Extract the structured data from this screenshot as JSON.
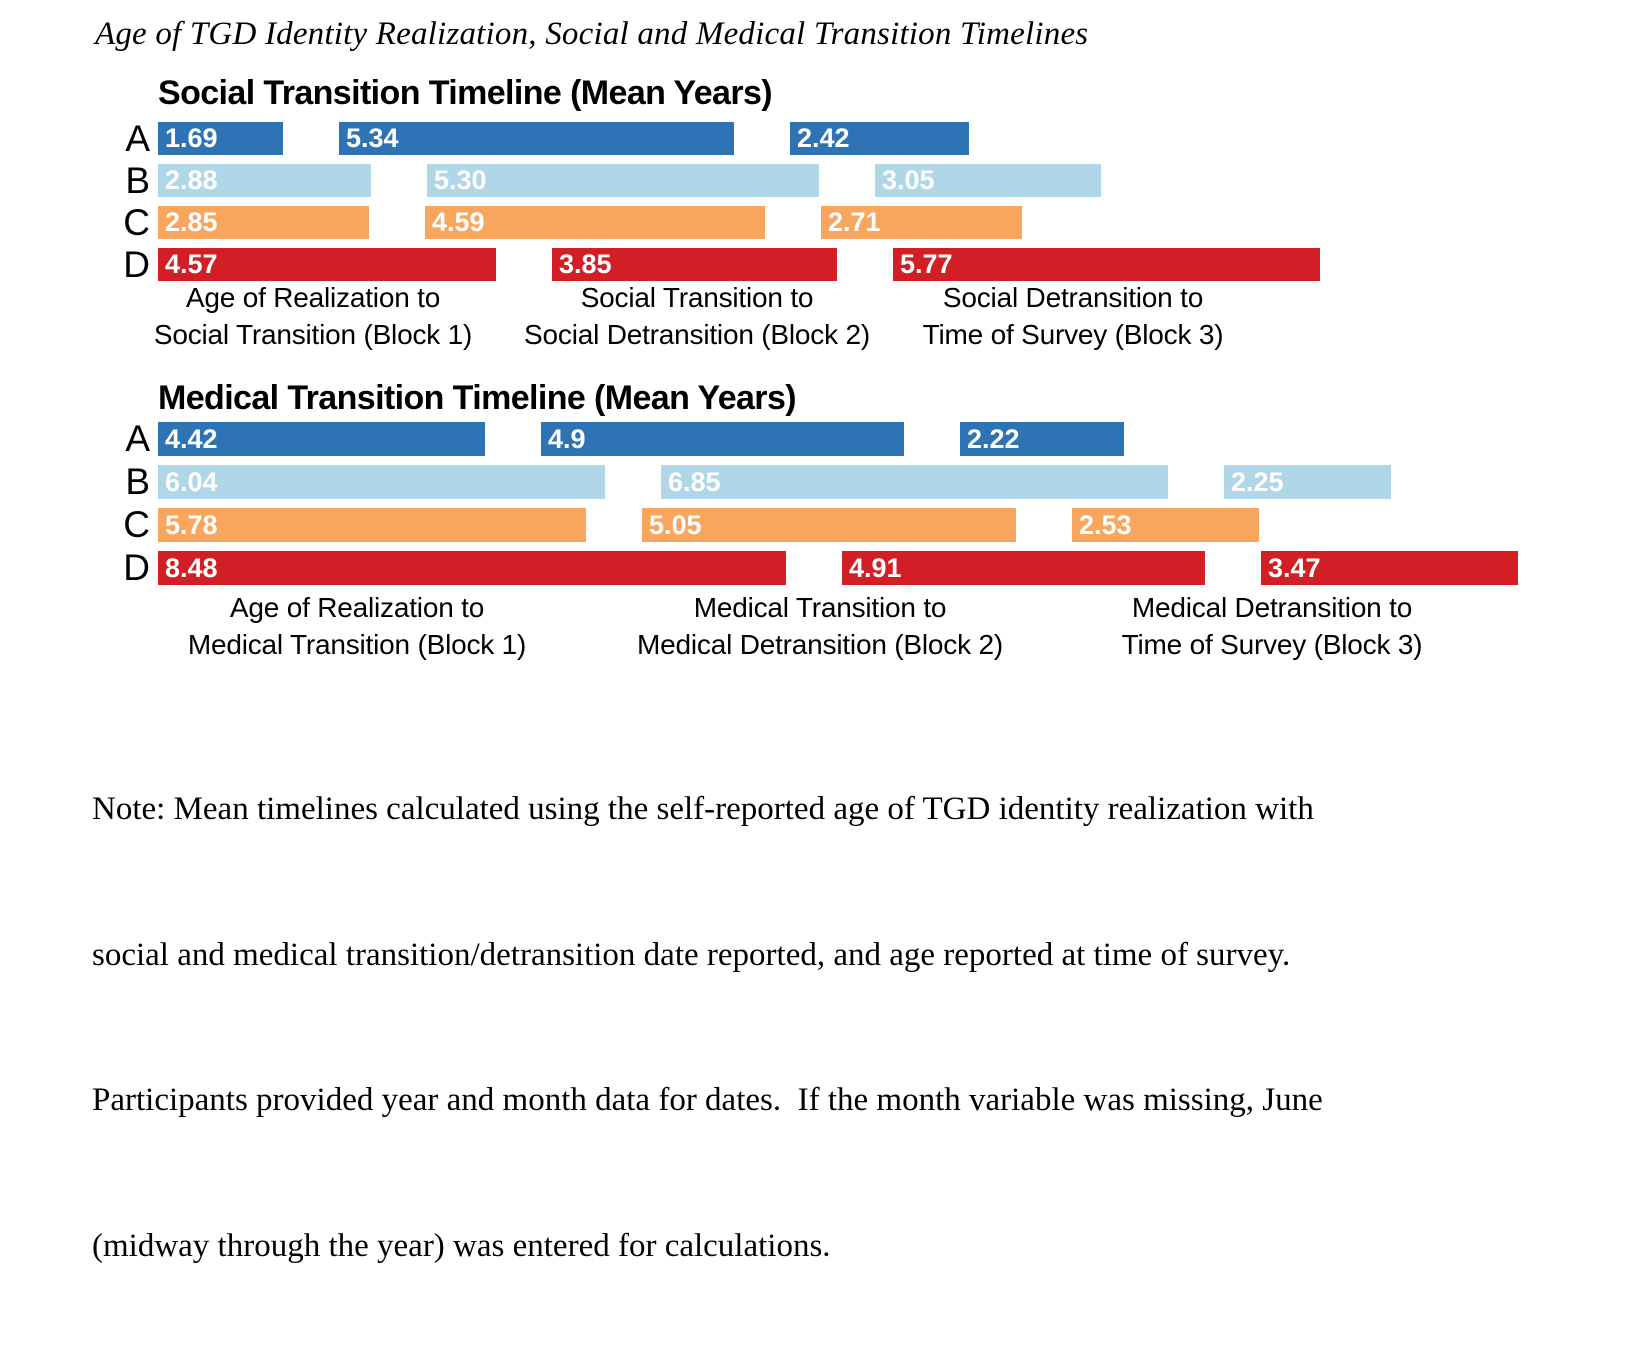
{
  "title": "Age of TGD Identity Realization, Social and Medical Transition Timelines",
  "colors": {
    "series_A": "#2E74B4",
    "series_B": "#AFD7E8",
    "series_C": "#F8A55D",
    "series_D": "#D21F26",
    "bar_value_text": "#FFFFFF",
    "text": "#000000",
    "background": "#FFFFFF"
  },
  "chart_data": [
    {
      "type": "bar",
      "subtype": "segmented-horizontal-timeline",
      "title": "Social Transition Timeline (Mean Years)",
      "unit": "mean years",
      "legend": "none",
      "grid": "off",
      "categories": [
        "Age of Realization to Social Transition (Block 1)",
        "Social Transition to Social Detransition (Block 2)",
        "Social Detransition to Time of Survey (Block 3)"
      ],
      "categories_2line": [
        [
          "Age of Realization to",
          "Social Transition (Block 1)"
        ],
        [
          "Social Transition to",
          "Social Detransition (Block 2)"
        ],
        [
          "Social Detransition to",
          "Time of Survey (Block 3)"
        ]
      ],
      "series": [
        {
          "name": "A",
          "color": "#2E74B4",
          "values": [
            1.69,
            5.34,
            2.42
          ],
          "labels": [
            "1.69",
            "5.34",
            "2.42"
          ]
        },
        {
          "name": "B",
          "color": "#AFD7E8",
          "values": [
            2.88,
            5.3,
            3.05
          ],
          "labels": [
            "2.88",
            "5.30",
            "3.05"
          ]
        },
        {
          "name": "C",
          "color": "#F8A55D",
          "values": [
            2.85,
            4.59,
            2.71
          ],
          "labels": [
            "2.85",
            "4.59",
            "2.71"
          ]
        },
        {
          "name": "D",
          "color": "#D21F26",
          "values": [
            4.57,
            3.85,
            5.77
          ],
          "labels": [
            "4.57",
            "3.85",
            "5.77"
          ]
        }
      ]
    },
    {
      "type": "bar",
      "subtype": "segmented-horizontal-timeline",
      "title": "Medical Transition Timeline (Mean Years)",
      "unit": "mean years",
      "legend": "none",
      "grid": "off",
      "categories": [
        "Age of Realization to Medical Transition (Block 1)",
        "Medical Transition to Medical Detransition (Block 2)",
        "Medical Detransition to Time of Survey (Block 3)"
      ],
      "categories_2line": [
        [
          "Age of Realization to",
          "Medical Transition (Block 1)"
        ],
        [
          "Medical Transition to",
          "Medical Detransition (Block 2)"
        ],
        [
          "Medical Detransition to",
          "Time of Survey (Block 3)"
        ]
      ],
      "series": [
        {
          "name": "A",
          "color": "#2E74B4",
          "values": [
            4.42,
            4.9,
            2.22
          ],
          "labels": [
            "4.42",
            "4.9",
            "2.22"
          ]
        },
        {
          "name": "B",
          "color": "#AFD7E8",
          "values": [
            6.04,
            6.85,
            2.25
          ],
          "labels": [
            "6.04",
            "6.85",
            "2.25"
          ]
        },
        {
          "name": "C",
          "color": "#F8A55D",
          "values": [
            5.78,
            5.05,
            2.53
          ],
          "labels": [
            "5.78",
            "5.05",
            "2.53"
          ]
        },
        {
          "name": "D",
          "color": "#D21F26",
          "values": [
            8.48,
            4.91,
            3.47
          ],
          "labels": [
            "8.48",
            "4.91",
            "3.47"
          ]
        }
      ]
    }
  ],
  "note": {
    "lines": [
      "Note: Mean timelines calculated using the self-reported age of TGD identity realization with",
      "social and medical transition/detransition date reported, and age reported at time of survey.",
      "Participants provided year and month data for dates.  If the month variable was missing, June",
      "(midway through the year) was entered for calculations."
    ]
  }
}
